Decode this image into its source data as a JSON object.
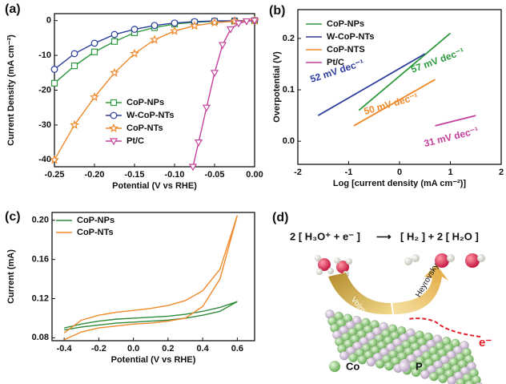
{
  "chart_data": [
    {
      "type": "line",
      "panel": "(a)",
      "xlabel": "Potential (V vs RHE)",
      "ylabel": "Current Density (mA cm⁻²)",
      "xlim": [
        -0.25,
        0
      ],
      "ylim": [
        -42,
        2
      ],
      "xticks": [
        -0.25,
        {
          "value": -0.2,
          "label": "-0.20"
        },
        -0.15,
        {
          "value": -0.1,
          "label": "-0.10"
        },
        -0.05,
        {
          "value": 0,
          "label": "0.00"
        }
      ],
      "yticks": [
        0,
        -10,
        -20,
        -30,
        -40
      ],
      "series": [
        {
          "name": "CoP-NPs",
          "color": "#2e9a3e",
          "marker": "square",
          "x": [
            -0.25,
            -0.225,
            -0.2,
            -0.175,
            -0.15,
            -0.125,
            -0.1,
            -0.075,
            -0.05,
            -0.025,
            0
          ],
          "values": [
            -18,
            -13,
            -9,
            -6,
            -3.5,
            -2,
            -1,
            -0.5,
            -0.2,
            -0.1,
            0
          ]
        },
        {
          "name": "W-CoP-NTs",
          "color": "#2d3e9e",
          "marker": "circle",
          "x": [
            -0.25,
            -0.225,
            -0.2,
            -0.175,
            -0.15,
            -0.125,
            -0.1,
            -0.075,
            -0.05,
            -0.025,
            0
          ],
          "values": [
            -14,
            -9.5,
            -6.5,
            -4,
            -2.5,
            -1.4,
            -0.7,
            -0.3,
            -0.1,
            -0.05,
            0
          ]
        },
        {
          "name": "CoP-NTs",
          "color": "#f0892a",
          "marker": "star",
          "x": [
            -0.25,
            -0.225,
            -0.2,
            -0.175,
            -0.15,
            -0.125,
            -0.1,
            -0.075,
            -0.05,
            -0.025,
            0
          ],
          "values": [
            -40,
            -30,
            -22,
            -15,
            -9.5,
            -5.5,
            -3,
            -1.5,
            -0.6,
            -0.2,
            0
          ]
        },
        {
          "name": "Pt/C",
          "color": "#c4409c",
          "marker": "triangle",
          "x": [
            -0.077,
            -0.07,
            -0.06,
            -0.05,
            -0.04,
            -0.03,
            -0.02,
            -0.01,
            0
          ],
          "values": [
            -42,
            -35,
            -25,
            -15,
            -7,
            -2.5,
            -0.8,
            -0.2,
            0
          ]
        }
      ]
    },
    {
      "type": "line",
      "panel": "(b)",
      "xlabel": "Log [current density (mA cm⁻²)]",
      "ylabel": "Overpotential (V)",
      "xlim": [
        -2,
        2
      ],
      "ylim": [
        -0.045,
        0.256
      ],
      "xticks": [
        -2,
        -1,
        0,
        1,
        2
      ],
      "yticks": [
        {
          "value": 0,
          "label": "0.0"
        },
        0.1,
        0.2
      ],
      "series": [
        {
          "name": "CoP-NPs",
          "color": "#2e9a3e",
          "x": [
            -0.8,
            0.1,
            1.0
          ],
          "values": [
            0.06,
            0.135,
            0.21
          ]
        },
        {
          "name": "W-CoP-NTs",
          "color": "#2d3e9e",
          "x": [
            -1.6,
            -0.55,
            0.5
          ],
          "values": [
            0.05,
            0.11,
            0.17
          ]
        },
        {
          "name": "CoP-NTS",
          "color": "#f0892a",
          "x": [
            -0.9,
            -0.1,
            0.7
          ],
          "values": [
            0.03,
            0.075,
            0.12
          ]
        },
        {
          "name": "Pt/C",
          "color": "#c4409c",
          "x": [
            0.7,
            1.1,
            1.5
          ],
          "values": [
            0.03,
            0.04,
            0.05
          ]
        }
      ],
      "annotations": [
        "52 mV dec⁻¹",
        "57 mV dec⁻¹",
        "50 mV dec⁻¹",
        "31 mV dec⁻¹"
      ]
    },
    {
      "type": "line",
      "panel": "(c)",
      "xlabel": "Potential (V vs RHE)",
      "ylabel": "Current (mA)",
      "xlim": [
        -0.47,
        0.7
      ],
      "ylim": [
        0.077,
        0.208
      ],
      "xticks": [
        -0.4,
        -0.2,
        {
          "value": 0,
          "label": "0.0"
        },
        0.2,
        0.4,
        0.6
      ],
      "yticks": [
        0.08,
        0.12,
        0.16,
        {
          "value": 0.2,
          "label": "0.20"
        }
      ],
      "x": [
        -0.4,
        -0.3,
        -0.2,
        -0.1,
        0,
        0.1,
        0.2,
        0.3,
        0.4,
        0.5,
        0.6,
        0.5,
        0.4,
        0.3,
        0.2,
        0.1,
        0,
        -0.1,
        -0.2,
        -0.3,
        -0.4
      ],
      "series": [
        {
          "name": "CoP-NPs",
          "color": "#2e8b3a",
          "values": [
            0.09,
            0.094,
            0.097,
            0.099,
            0.1,
            0.101,
            0.102,
            0.104,
            0.107,
            0.111,
            0.117,
            0.107,
            0.103,
            0.1,
            0.098,
            0.097,
            0.096,
            0.095,
            0.093,
            0.091,
            0.088
          ]
        },
        {
          "name": "CoP-NTs",
          "color": "#f0892a",
          "values": [
            0.085,
            0.098,
            0.103,
            0.106,
            0.108,
            0.11,
            0.113,
            0.118,
            0.128,
            0.15,
            0.205,
            0.14,
            0.112,
            0.1,
            0.097,
            0.095,
            0.094,
            0.092,
            0.09,
            0.086,
            0.078
          ]
        }
      ]
    }
  ],
  "diagram": {
    "panel": "(d)",
    "reactants": "2 [ H₃O⁺ + e⁻ ]",
    "arrow": "⟶",
    "products": "[ H₂ ] + 2 [ H₂O ]",
    "step1": "Volmer",
    "step2": "Heyrovsky",
    "electron": "e⁻",
    "legend": [
      "Co",
      "P"
    ]
  }
}
